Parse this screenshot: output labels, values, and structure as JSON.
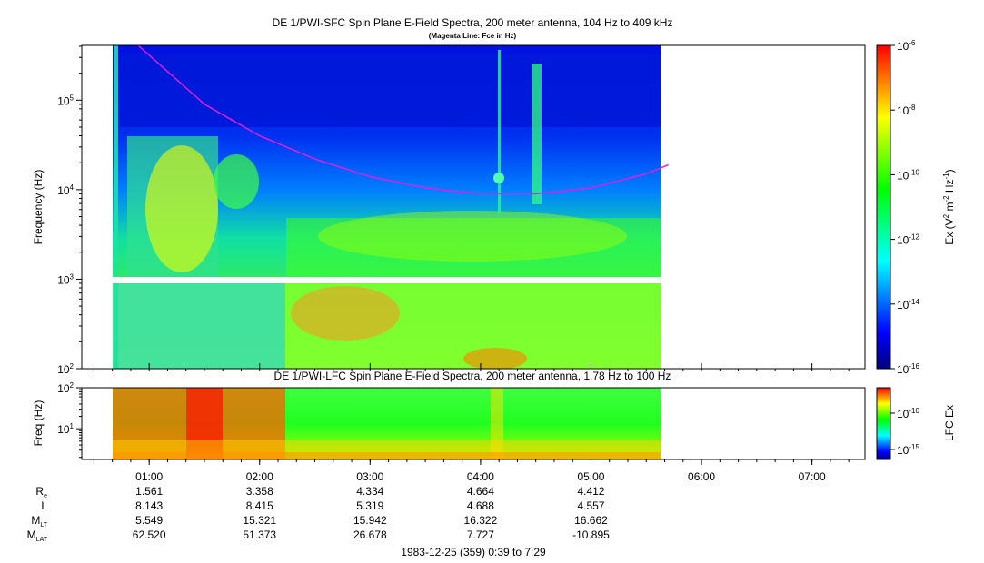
{
  "chart_data": [
    {
      "type": "heatmap",
      "title": "DE 1/PWI-SFC  Spin Plane E-Field Spectra, 200 meter antenna, 104 Hz to 409 kHz",
      "subtitle": "(Magenta Line: Fce in Hz)",
      "ylabel": "Frequency (Hz)",
      "yscale": "log",
      "ylim": [
        100,
        409000
      ],
      "yticks": [
        {
          "label": "10",
          "exp": "2"
        },
        {
          "label": "10",
          "exp": "3"
        },
        {
          "label": "10",
          "exp": "4"
        },
        {
          "label": "10",
          "exp": "5"
        }
      ],
      "colorbar": {
        "label_prefix": "Ex (V",
        "label_exp1": "2",
        "label_mid": " m",
        "label_exp2": "-2",
        "label_mid2": " Hz",
        "label_exp3": "-1",
        "label_suffix": ")",
        "scale": "log",
        "range": [
          1e-16,
          1e-06
        ],
        "ticks": [
          {
            "label": "10",
            "exp": "-6"
          },
          {
            "label": "10",
            "exp": "-8"
          },
          {
            "label": "10",
            "exp": "-10"
          },
          {
            "label": "10",
            "exp": "-12"
          },
          {
            "label": "10",
            "exp": "-14"
          },
          {
            "label": "10",
            "exp": "-16"
          }
        ]
      },
      "data_time_range_hours": [
        0.9,
        5.7
      ],
      "fce_line": {
        "name": "Fce",
        "x_hours": [
          0.9,
          1.5,
          2.0,
          2.5,
          3.0,
          3.5,
          4.0,
          4.5,
          5.0,
          5.5,
          5.7
        ],
        "y_hz": [
          409000,
          90000,
          40000,
          22000,
          14000,
          10500,
          9000,
          9000,
          10500,
          15000,
          19000
        ]
      }
    },
    {
      "type": "heatmap",
      "title": "DE 1/PWI-LFC  Spin Plane E-Field Spectra, 200 meter antenna, 1.78 Hz to 100 Hz",
      "ylabel": "Freq (Hz)",
      "yscale": "log",
      "ylim": [
        1.78,
        100
      ],
      "yticks": [
        {
          "label": "10",
          "exp": "1"
        },
        {
          "label": "10",
          "exp": "2"
        }
      ],
      "colorbar": {
        "label": "LFC Ex",
        "scale": "log",
        "ticks": [
          {
            "label": "10",
            "exp": "-10"
          },
          {
            "label": "10",
            "exp": "-15"
          }
        ]
      },
      "data_time_range_hours": [
        0.9,
        5.7
      ]
    }
  ],
  "time_axis": {
    "xlim_hours": [
      0.39,
      7.48
    ],
    "ticks": [
      {
        "hour": 1,
        "label": "01:00"
      },
      {
        "hour": 2,
        "label": "02:00"
      },
      {
        "hour": 3,
        "label": "03:00"
      },
      {
        "hour": 4,
        "label": "04:00"
      },
      {
        "hour": 5,
        "label": "05:00"
      },
      {
        "hour": 6,
        "label": "06:00"
      },
      {
        "hour": 7,
        "label": "07:00"
      }
    ],
    "date_label": "1983-12-25 (359) 0:39 to 7:29"
  },
  "ephemeris": {
    "rows": [
      {
        "label": "R",
        "sub": "e",
        "values": [
          "1.561",
          "3.358",
          "4.334",
          "4.664",
          "4.412"
        ]
      },
      {
        "label": "L",
        "sub": "",
        "values": [
          "8.143",
          "8.415",
          "5.319",
          "4.688",
          "4.557"
        ]
      },
      {
        "label": "M",
        "sub": "LT",
        "values": [
          "5.549",
          "15.321",
          "15.942",
          "16.322",
          "16.662"
        ]
      },
      {
        "label": "M",
        "sub": "LAT",
        "values": [
          "62.520",
          "51.373",
          "26.678",
          "7.727",
          "-10.895"
        ]
      }
    ]
  },
  "colors": {
    "fce_line": "#e020e0",
    "colormap": [
      "#00007f",
      "#0000ff",
      "#0080ff",
      "#00ffff",
      "#00ff80",
      "#00ff00",
      "#80ff00",
      "#ffff00",
      "#ff8000",
      "#ff0000"
    ]
  }
}
